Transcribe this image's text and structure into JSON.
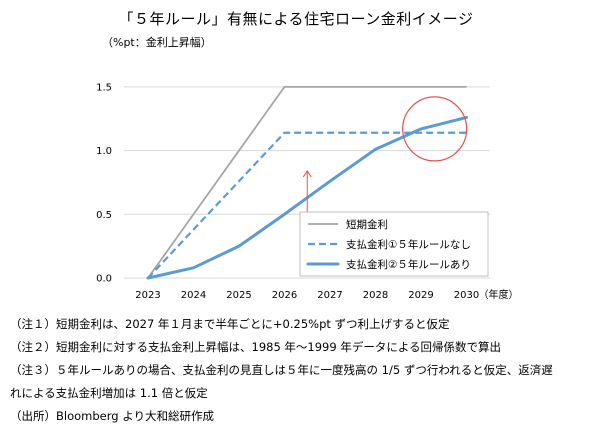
{
  "title": "「５年ルール」有無による住宅ローン金利イメージ",
  "unit_label": "（%pt：金利上昇幅）",
  "notes": [
    "（注１）短期金利は、2027 年１月まで半年ごとに+0.25%pt ずつ利上げすると仮定",
    "（注２）短期金利に対する支払金利上昇幅は、1985 年～1999 年データによる回帰係数で算出",
    "（注３）５年ルールありの場合、支払金利の見直しは５年に一度残高の 1/5 ずつ行われると仮定、返済遅",
    "れによる支払金利増加は 1.1 倍と仮定",
    "（出所）Bloomberg より大和総研作成"
  ],
  "chart_data": {
    "type": "line",
    "x": [
      2023,
      2024,
      2025,
      2026,
      2027,
      2028,
      2029,
      2030
    ],
    "x_tick_labels": [
      "2023",
      "2024",
      "2025",
      "2026",
      "2027",
      "2028",
      "2029",
      "2030"
    ],
    "x_unit_label": "（年度）",
    "ylim": [
      0,
      1.75
    ],
    "y_ticks": [
      0,
      0.5,
      1.0,
      1.5
    ],
    "y_tick_labels": [
      "0.0",
      "0.5",
      "1.0",
      "1.5"
    ],
    "grid": "horizontal",
    "legend_position": "bottom-right",
    "series": [
      {
        "name": "短期金利",
        "color": "#a6a6a6",
        "style": "solid",
        "values": [
          0,
          0.5,
          1.0,
          1.5,
          1.5,
          1.5,
          1.5,
          1.5
        ]
      },
      {
        "name": "支払金利①５年ルールなし",
        "color": "#5b9bd5",
        "style": "dashed",
        "values": [
          0,
          0.38,
          0.76,
          1.14,
          1.14,
          1.14,
          1.14,
          1.14
        ]
      },
      {
        "name": "支払金利②５年ルールあり",
        "color": "#5b9bd5",
        "style": "solid-thick",
        "values": [
          0,
          0.08,
          0.25,
          0.5,
          0.76,
          1.01,
          1.17,
          1.26
        ]
      }
    ],
    "annotations": [
      {
        "type": "double-arrow",
        "color": "#e8504f",
        "x": 2026.5,
        "y_from": 0.42,
        "y_to": 0.84
      },
      {
        "type": "circle",
        "color": "#e8504f",
        "center_x": 2029.3,
        "center_y": 1.17
      }
    ]
  }
}
